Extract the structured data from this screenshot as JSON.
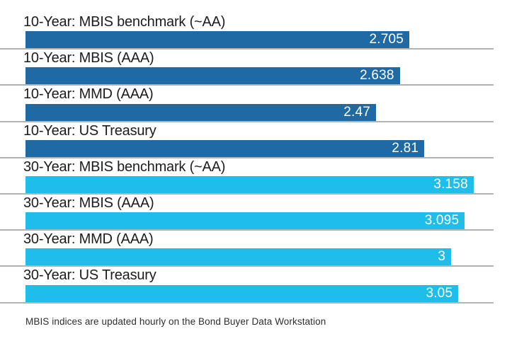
{
  "chart_data": {
    "type": "bar",
    "orientation": "horizontal",
    "title": "",
    "xlabel": "",
    "ylabel": "",
    "categories": [
      "10-Year: MBIS benchmark (~AA)",
      "10-Year: MBIS (AAA)",
      "10-Year: MMD (AAA)",
      "10-Year: US Treasury",
      "30-Year: MBIS benchmark (~AA)",
      "30-Year: MBIS (AAA)",
      "30-Year: MMD (AAA)",
      "30-Year: US Treasury"
    ],
    "values": [
      2.705,
      2.638,
      2.47,
      2.81,
      3.158,
      3.095,
      3,
      3.05
    ],
    "value_labels": [
      "2.705",
      "2.638",
      "2.47",
      "2.81",
      "3.158",
      "3.095",
      "3",
      "3.05"
    ],
    "series": [
      {
        "name": "10-Year",
        "color": "#1f6aa5",
        "values": [
          2.705,
          2.638,
          2.47,
          2.81
        ]
      },
      {
        "name": "30-Year",
        "color": "#1fbdea",
        "values": [
          3.158,
          3.095,
          3,
          3.05
        ]
      }
    ],
    "xlim": [
      0,
      3.32
    ],
    "grid": "row separator lines only",
    "legend": "none",
    "data_labels": "inside bar end, white",
    "annotation": "MBIS indices are updated hourly on the Bond Buyer Data Workstation"
  },
  "rows": [
    {
      "label": "10-Year: MBIS benchmark (~AA)",
      "value": 2.705,
      "value_label": "2.705",
      "group": "10_year"
    },
    {
      "label": "10-Year: MBIS (AAA)",
      "value": 2.638,
      "value_label": "2.638",
      "group": "10_year"
    },
    {
      "label": "10-Year: MMD (AAA)",
      "value": 2.47,
      "value_label": "2.47",
      "group": "10_year"
    },
    {
      "label": "10-Year: US Treasury",
      "value": 2.81,
      "value_label": "2.81",
      "group": "10_year"
    },
    {
      "label": "30-Year: MBIS benchmark (~AA)",
      "value": 3.158,
      "value_label": "3.158",
      "group": "30_year"
    },
    {
      "label": "30-Year: MBIS (AAA)",
      "value": 3.095,
      "value_label": "3.095",
      "group": "30_year"
    },
    {
      "label": "30-Year: MMD (AAA)",
      "value": 3,
      "value_label": "3",
      "group": "30_year"
    },
    {
      "label": "30-Year: US Treasury",
      "value": 3.05,
      "value_label": "3.05",
      "group": "30_year"
    }
  ],
  "footer": {
    "note": "MBIS indices are updated hourly on the Bond Buyer Data Workstation"
  },
  "colors": {
    "bar_10_year": "#1f6aa5",
    "bar_30_year": "#1fbdea",
    "separator": "#b0b2b4",
    "label_text": "#1c1c1c",
    "value_text": "#ffffff",
    "footnote_text": "#2e2e2e",
    "background": "#ffffff"
  }
}
